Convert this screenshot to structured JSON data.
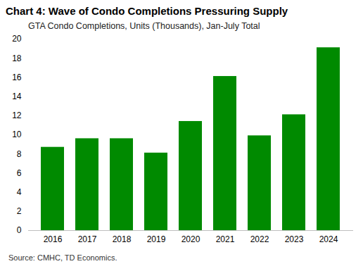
{
  "chart_data": {
    "type": "bar",
    "title": "Chart 4: Wave of Condo Completions Pressuring Supply",
    "subtitle": "GTA Condo Completions, Units (Thousands), Jan-July Total",
    "source": "Source: CMHC, TD Economics.",
    "categories": [
      "2016",
      "2017",
      "2018",
      "2019",
      "2020",
      "2021",
      "2022",
      "2023",
      "2024"
    ],
    "values": [
      8.7,
      9.6,
      9.6,
      8.1,
      11.4,
      16.1,
      9.9,
      12.1,
      19.1
    ],
    "color": "#008a00",
    "ylim": [
      0,
      20
    ],
    "yticks": [
      0,
      2,
      4,
      6,
      8,
      10,
      12,
      14,
      16,
      18,
      20
    ],
    "grid": false
  }
}
